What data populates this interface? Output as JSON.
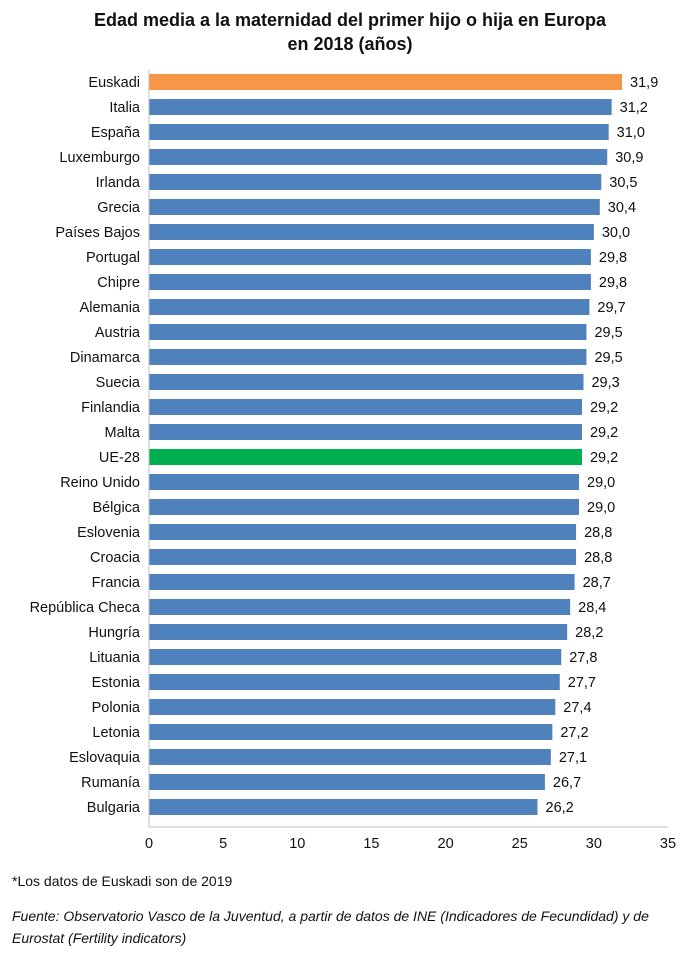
{
  "chart_data": {
    "type": "bar",
    "orientation": "horizontal",
    "title_line1": "Edad media a la maternidad del primer hijo o hija en Europa",
    "title_line2": "en 2018 (años)",
    "categories": [
      "Euskadi",
      "Italia",
      "España",
      "Luxemburgo",
      "Irlanda",
      "Grecia",
      "Países Bajos",
      "Portugal",
      "Chipre",
      "Alemania",
      "Austria",
      "Dinamarca",
      "Suecia",
      "Finlandia",
      "Malta",
      "UE-28",
      "Reino Unido",
      "Bélgica",
      "Eslovenia",
      "Croacia",
      "Francia",
      "República Checa",
      "Hungría",
      "Lituania",
      "Estonia",
      "Polonia",
      "Letonia",
      "Eslovaquia",
      "Rumanía",
      "Bulgaria"
    ],
    "values": [
      31.9,
      31.2,
      31.0,
      30.9,
      30.5,
      30.4,
      30.0,
      29.8,
      29.8,
      29.7,
      29.5,
      29.5,
      29.3,
      29.2,
      29.2,
      29.2,
      29.0,
      29.0,
      28.8,
      28.8,
      28.7,
      28.4,
      28.2,
      27.8,
      27.7,
      27.4,
      27.2,
      27.1,
      26.7,
      26.2
    ],
    "data_labels": [
      "31,9",
      "31,2",
      "31,0",
      "30,9",
      "30,5",
      "30,4",
      "30,0",
      "29,8",
      "29,8",
      "29,7",
      "29,5",
      "29,5",
      "29,3",
      "29,2",
      "29,2",
      "29,2",
      "29,0",
      "29,0",
      "28,8",
      "28,8",
      "28,7",
      "28,4",
      "28,2",
      "27,8",
      "27,7",
      "27,4",
      "27,2",
      "27,1",
      "26,7",
      "26,2"
    ],
    "xlim": [
      0,
      35
    ],
    "xticks": [
      "0",
      "5",
      "10",
      "15",
      "20",
      "25",
      "30",
      "35"
    ],
    "grid": false,
    "colors": {
      "default": "#4f81bd",
      "Euskadi": "#f79646",
      "UE-28": "#00b050"
    }
  },
  "footnote": "*Los datos de Euskadi son de 2019",
  "source": "Fuente: Observatorio Vasco de la Juventud, a partir de datos de INE (Indicadores de Fecundidad) y de Eurostat (Fertility indicators)"
}
